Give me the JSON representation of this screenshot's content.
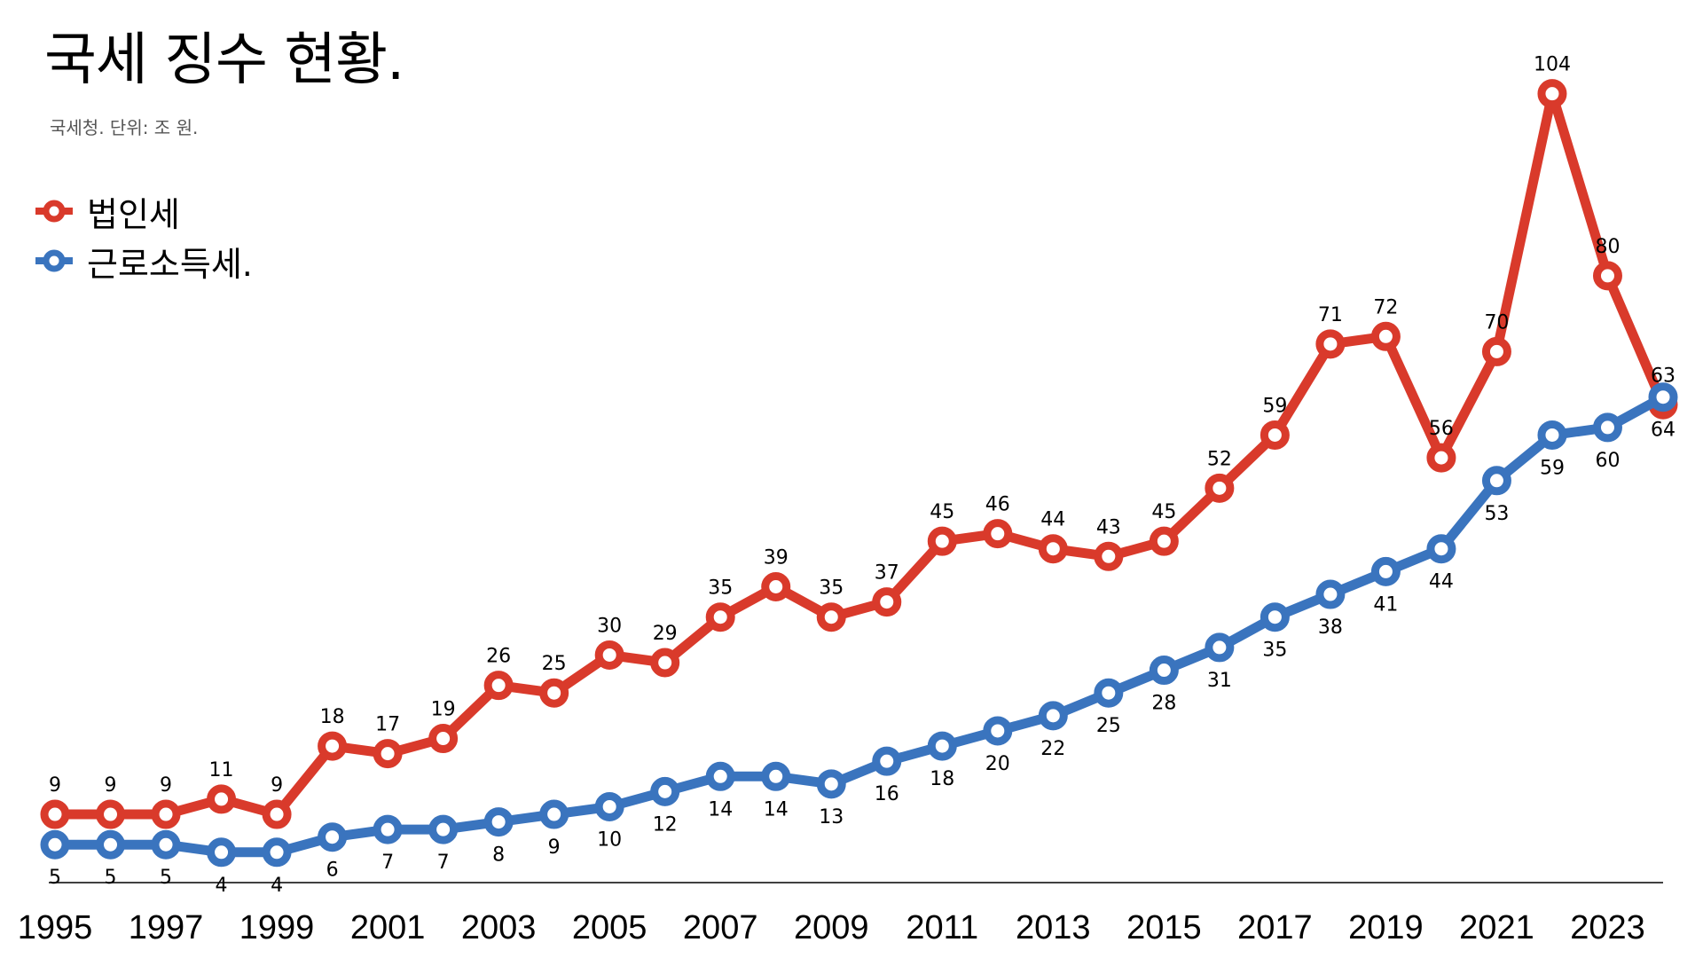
{
  "title": "국세 징수 현황.",
  "subtitle": "국세청. 단위: 조 원.",
  "colors": {
    "corporate": "#d93a2b",
    "income": "#3a74be",
    "axis": "#000000"
  },
  "chart_data": {
    "type": "line",
    "title": "국세 징수 현황.",
    "subtitle": "국세청. 단위: 조 원.",
    "xlabel": "",
    "ylabel": "",
    "ylim": [
      0,
      107
    ],
    "grid": false,
    "legend_position": "top-left",
    "x": [
      1995,
      1996,
      1997,
      1998,
      1999,
      2000,
      2001,
      2002,
      2003,
      2004,
      2005,
      2006,
      2007,
      2008,
      2009,
      2010,
      2011,
      2012,
      2013,
      2014,
      2015,
      2016,
      2017,
      2018,
      2019,
      2020,
      2021,
      2022,
      2023,
      2024
    ],
    "x_ticks": [
      "1995",
      "1997",
      "1999",
      "2001",
      "2003",
      "2005",
      "2007",
      "2009",
      "2011",
      "2013",
      "2015",
      "2017",
      "2019",
      "2021",
      "2023"
    ],
    "series": [
      {
        "name": "법인세",
        "color": "#d93a2b",
        "label_position": "above",
        "values": [
          9,
          9,
          9,
          11,
          9,
          18,
          17,
          19,
          26,
          25,
          30,
          29,
          35,
          39,
          35,
          37,
          45,
          46,
          44,
          43,
          45,
          52,
          59,
          71,
          72,
          56,
          70,
          104,
          80,
          63
        ]
      },
      {
        "name": "근로소득세.",
        "color": "#3a74be",
        "label_position": "below",
        "values": [
          5,
          5,
          5,
          4,
          4,
          6,
          7,
          7,
          8,
          9,
          10,
          12,
          14,
          14,
          13,
          16,
          18,
          20,
          22,
          25,
          28,
          31,
          35,
          38,
          41,
          44,
          53,
          59,
          60,
          64
        ]
      }
    ]
  }
}
